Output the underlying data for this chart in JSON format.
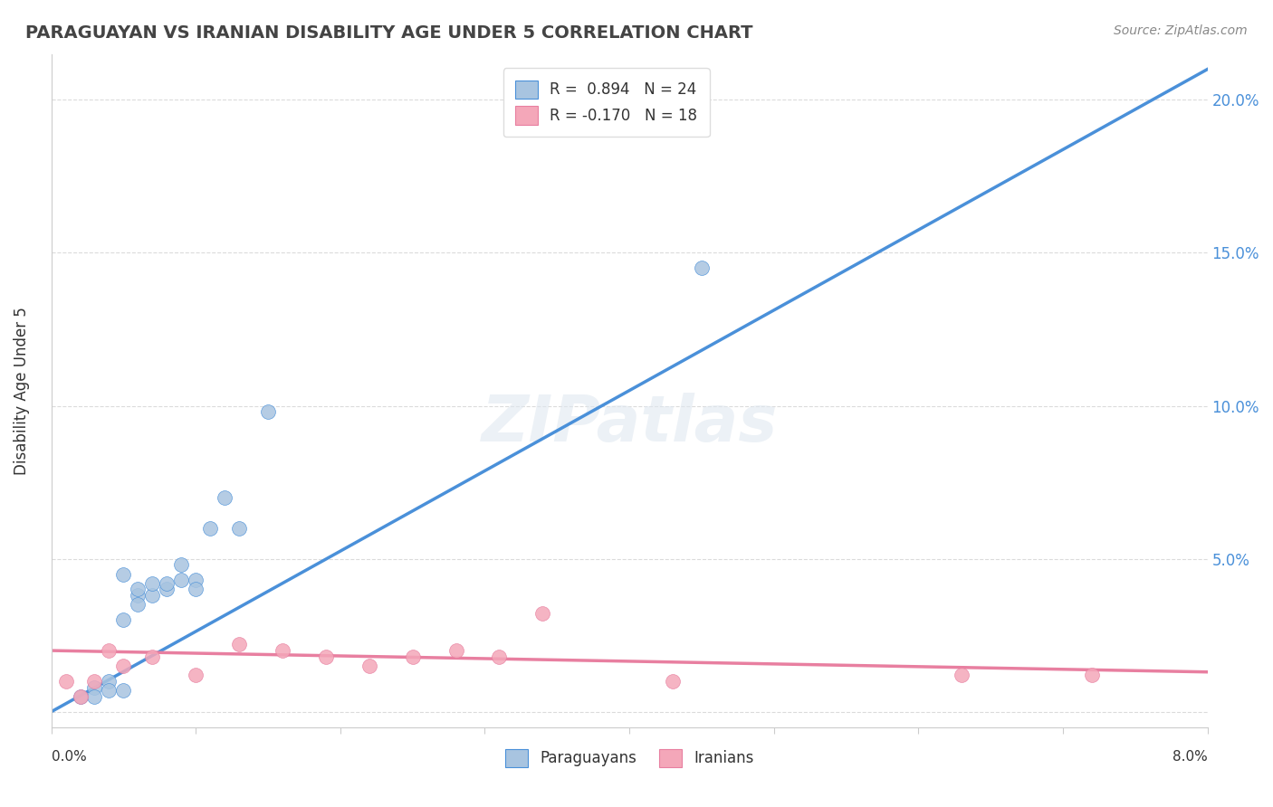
{
  "title": "PARAGUAYAN VS IRANIAN DISABILITY AGE UNDER 5 CORRELATION CHART",
  "source": "Source: ZipAtlas.com",
  "ylabel": "Disability Age Under 5",
  "xlim": [
    0.0,
    0.08
  ],
  "ylim": [
    -0.005,
    0.215
  ],
  "yticks": [
    0.0,
    0.05,
    0.1,
    0.15,
    0.2
  ],
  "right_ytick_labels": [
    "",
    "5.0%",
    "10.0%",
    "15.0%",
    "20.0%"
  ],
  "background_color": "#ffffff",
  "paraguayan_color": "#a8c4e0",
  "iranian_color": "#f4a7b9",
  "paraguayan_line_color": "#4a90d9",
  "iranian_line_color": "#e87fa0",
  "legend_paraguayan_label": "R =  0.894   N = 24",
  "legend_iranian_label": "R = -0.170   N = 18",
  "paraguayan_scatter_x": [
    0.002,
    0.003,
    0.003,
    0.004,
    0.004,
    0.005,
    0.005,
    0.005,
    0.006,
    0.006,
    0.006,
    0.007,
    0.007,
    0.008,
    0.008,
    0.009,
    0.009,
    0.01,
    0.01,
    0.011,
    0.012,
    0.013,
    0.015,
    0.045
  ],
  "paraguayan_scatter_y": [
    0.005,
    0.008,
    0.005,
    0.01,
    0.007,
    0.03,
    0.045,
    0.007,
    0.038,
    0.035,
    0.04,
    0.038,
    0.042,
    0.04,
    0.042,
    0.048,
    0.043,
    0.043,
    0.04,
    0.06,
    0.07,
    0.06,
    0.098,
    0.145
  ],
  "iranian_scatter_x": [
    0.001,
    0.002,
    0.003,
    0.004,
    0.005,
    0.007,
    0.01,
    0.013,
    0.016,
    0.019,
    0.022,
    0.025,
    0.028,
    0.031,
    0.034,
    0.043,
    0.063,
    0.072
  ],
  "iranian_scatter_y": [
    0.01,
    0.005,
    0.01,
    0.02,
    0.015,
    0.018,
    0.012,
    0.022,
    0.02,
    0.018,
    0.015,
    0.018,
    0.02,
    0.018,
    0.032,
    0.01,
    0.012,
    0.012
  ],
  "paraguayan_line_x": [
    0.0,
    0.08
  ],
  "paraguayan_line_y": [
    0.0,
    0.21
  ],
  "iranian_line_x": [
    0.0,
    0.08
  ],
  "iranian_line_y": [
    0.02,
    0.013
  ]
}
